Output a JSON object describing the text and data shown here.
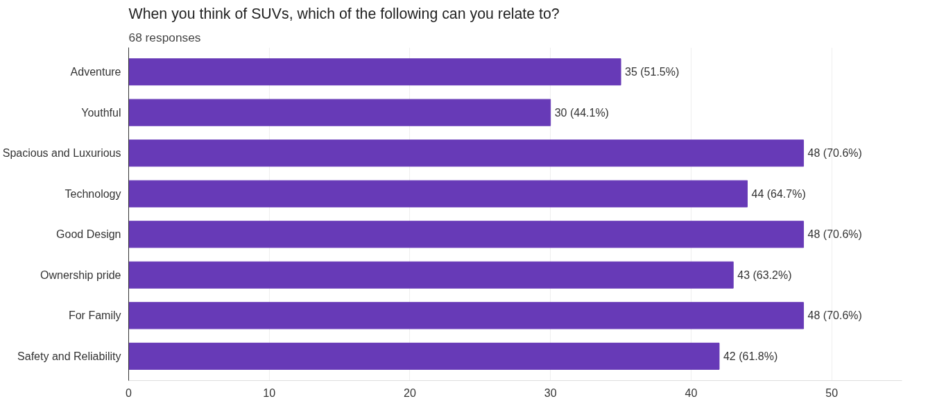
{
  "chart_data": {
    "type": "bar",
    "orientation": "horizontal",
    "title": "When you think of SUVs, which of the following can you relate to?",
    "subtitle": "68 responses",
    "categories": [
      "Adventure",
      "Youthful",
      "Spacious and Luxurious",
      "Technology",
      "Good Design",
      "Ownership pride",
      "For Family",
      "Safety and Reliability"
    ],
    "values": [
      35,
      30,
      48,
      44,
      48,
      43,
      48,
      42
    ],
    "value_labels": [
      "35 (51.5%)",
      "30 (44.1%)",
      "48 (70.6%)",
      "44 (64.7%)",
      "48 (70.6%)",
      "43 (63.2%)",
      "48 (70.6%)",
      "42 (61.8%)"
    ],
    "color": "#673ab7",
    "xlim": [
      0,
      55
    ],
    "xticks": [
      0,
      10,
      20,
      30,
      40,
      50
    ],
    "grid": "x"
  }
}
